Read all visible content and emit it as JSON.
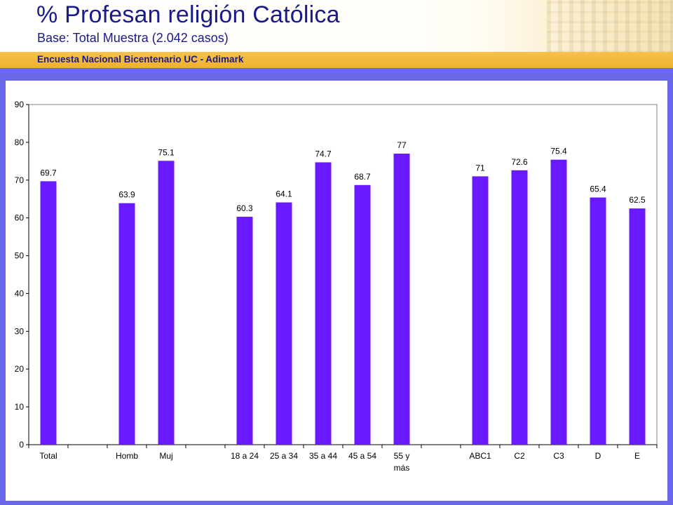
{
  "header": {
    "title": "% Profesan religión Católica",
    "subtitle": "Base: Total Muestra (2.042 casos)",
    "banner": "Encuesta Nacional Bicentenario UC - Adimark"
  },
  "colors": {
    "bar": "#6a1aff",
    "frame": "#6b69ea",
    "banner": "#f2b636",
    "title": "#1a1a8a"
  },
  "chart_data": {
    "type": "bar",
    "categories": [
      "Total",
      "",
      "Homb",
      "Muj",
      "",
      "18 a 24",
      "25 a 34",
      "35 a 44",
      "45 a 54",
      "55 y más",
      "",
      "ABC1",
      "C2",
      "C3",
      "D",
      "E"
    ],
    "values": [
      69.7,
      null,
      63.9,
      75.1,
      null,
      60.3,
      64.1,
      74.7,
      68.7,
      77,
      null,
      71,
      72.6,
      75.4,
      65.4,
      62.5
    ],
    "data_labels": [
      "69.7",
      "",
      "63.9",
      "75.1",
      "",
      "60.3",
      "64.1",
      "74.7",
      "68.7",
      "77",
      "",
      "71",
      "72.6",
      "75.4",
      "65.4",
      "62.5"
    ],
    "title": "",
    "xlabel": "",
    "ylabel": "",
    "ylim": [
      0,
      90
    ],
    "yticks": [
      0,
      10,
      20,
      30,
      40,
      50,
      60,
      70,
      80,
      90
    ],
    "grid": false,
    "legend": "none"
  }
}
